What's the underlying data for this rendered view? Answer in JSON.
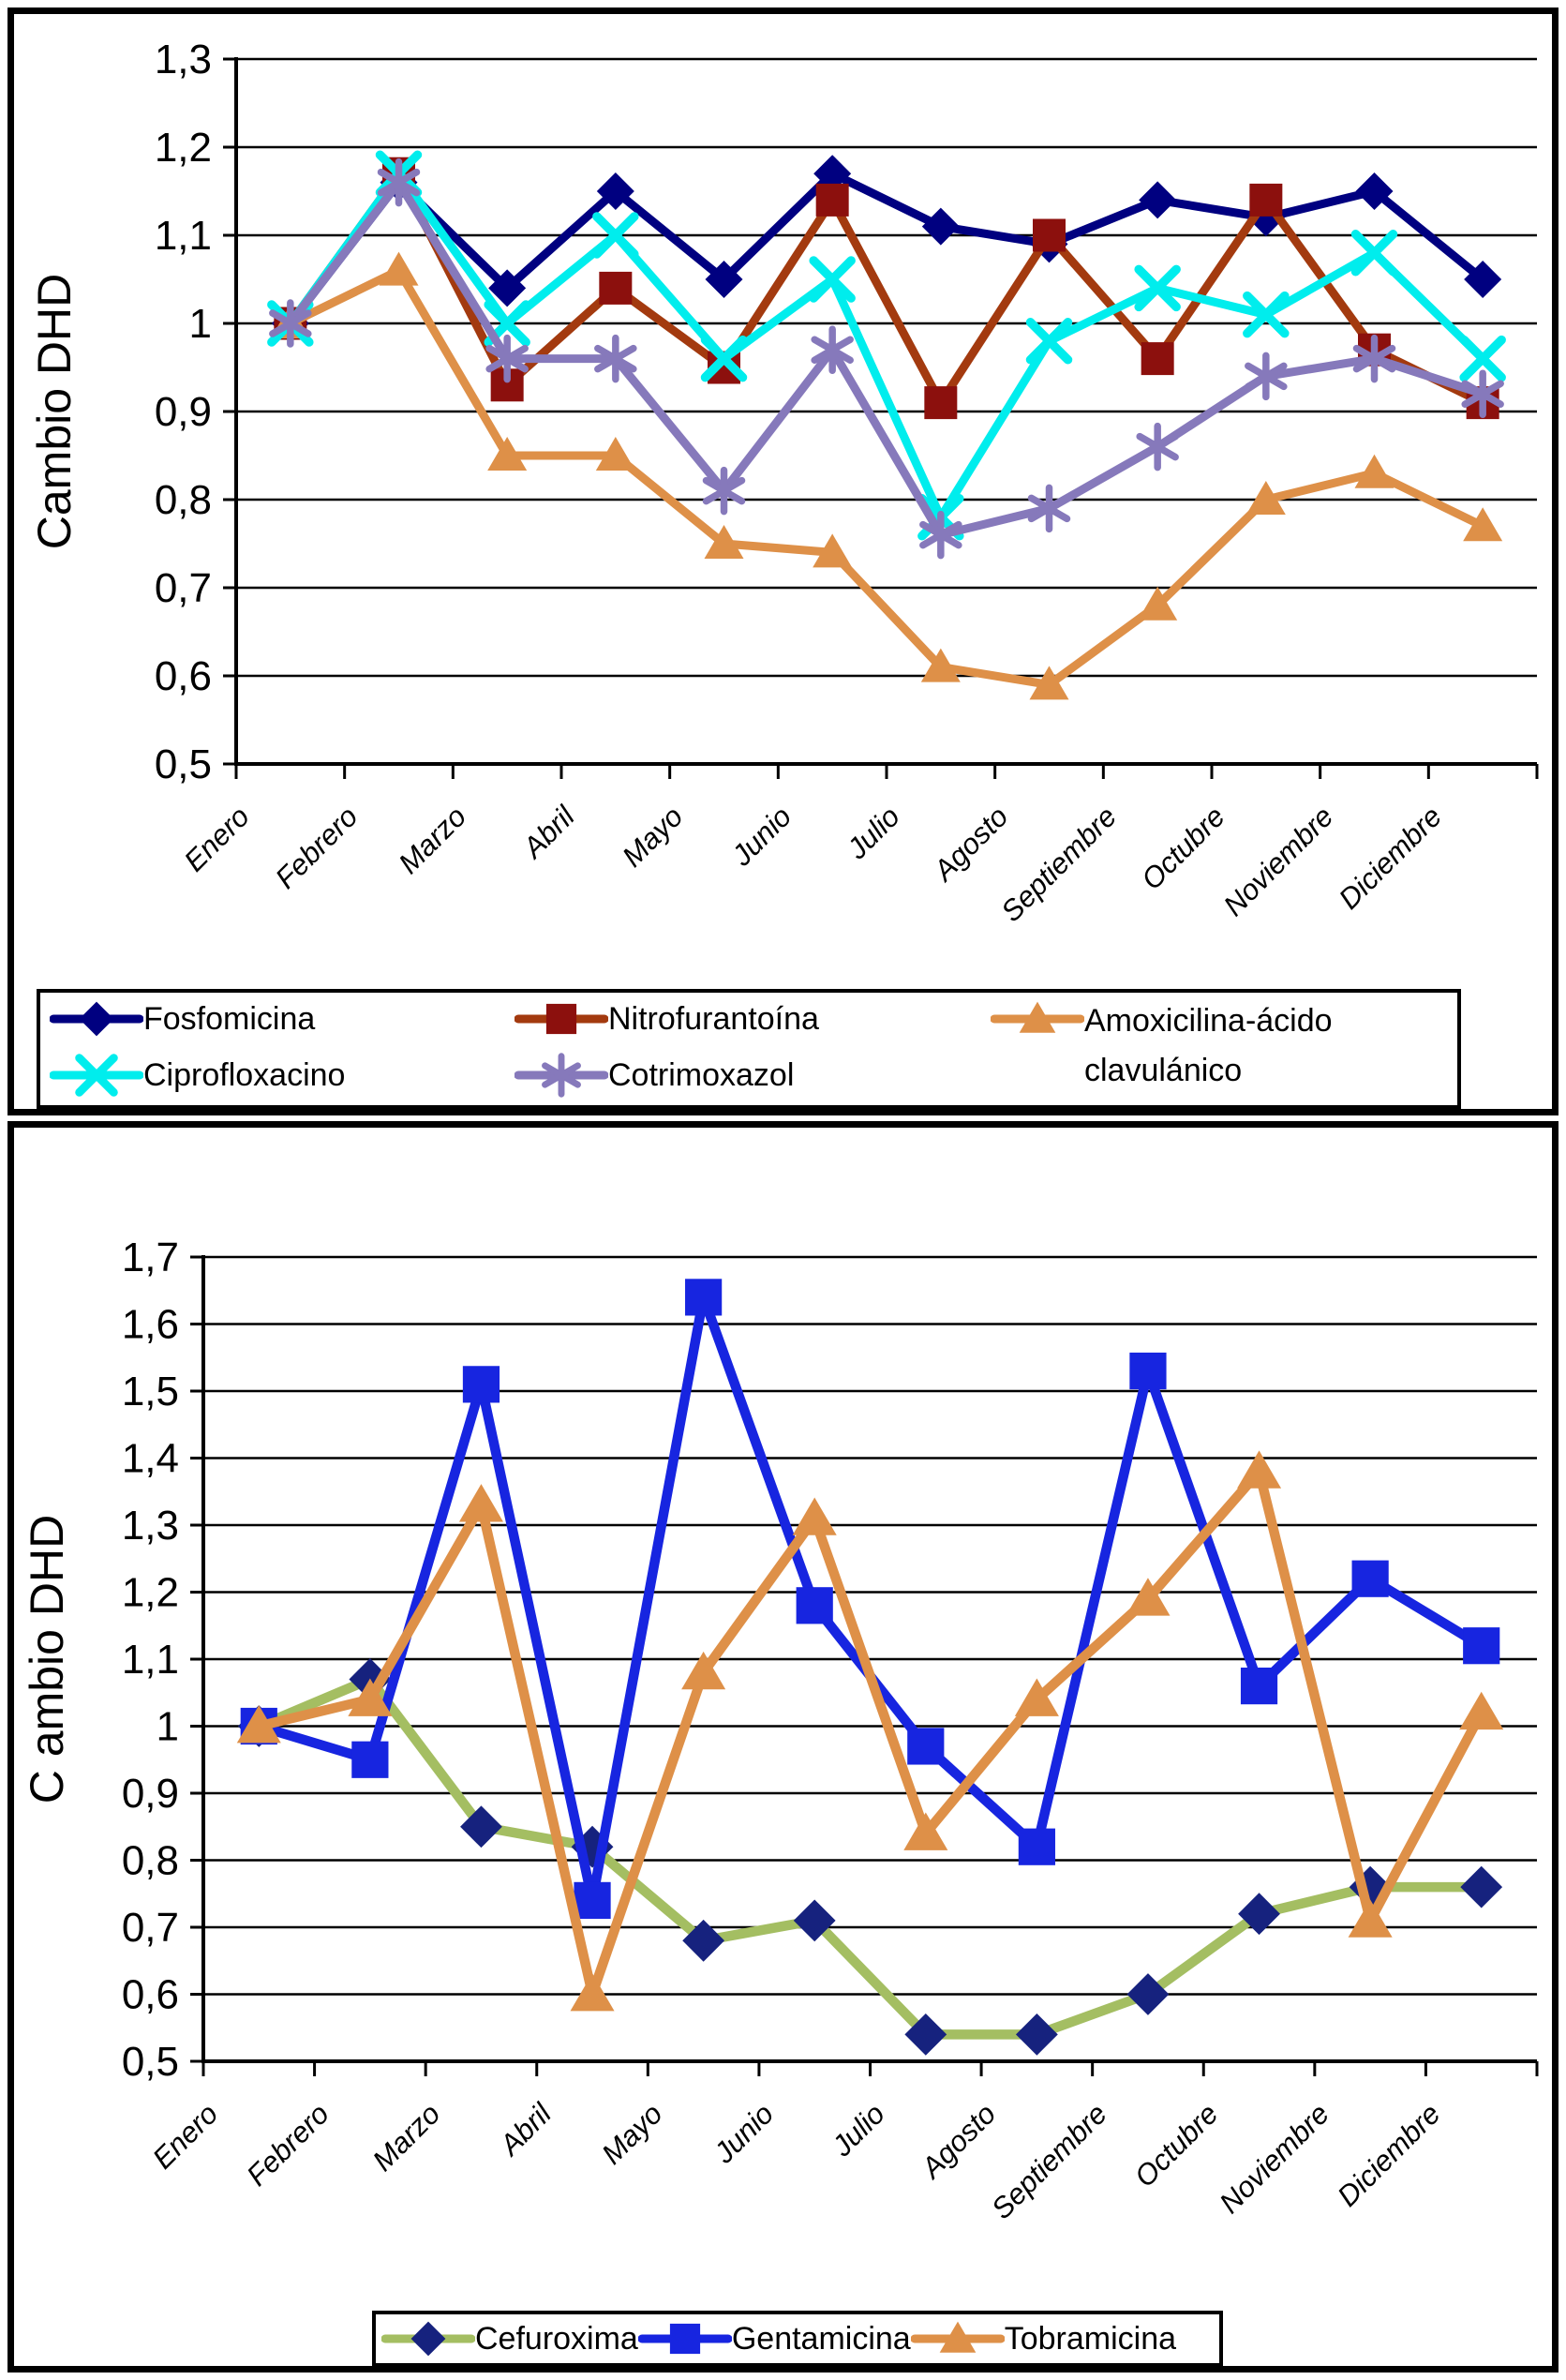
{
  "page": {
    "background_color": "#FFFFFF",
    "border_color": "#000000"
  },
  "chart_data": [
    {
      "type": "line",
      "title": "",
      "xlabel": "",
      "ylabel": "Cambio DHD",
      "categories": [
        "Enero",
        "Febrero",
        "Marzo",
        "Abril",
        "Mayo",
        "Junio",
        "Julio",
        "Agosto",
        "Septiembre",
        "Octubre",
        "Noviembre",
        "Diciembre"
      ],
      "ylim": [
        0.5,
        1.3
      ],
      "ytick_step": 0.1,
      "ytick_labels": [
        "0,5",
        "0,6",
        "0,7",
        "0,8",
        "0,9",
        "1",
        "1,1",
        "1,2",
        "1,3"
      ],
      "decimal_separator": ",",
      "grid": true,
      "xtick_rotation_deg": 45,
      "legend_position": "bottom-box-2-rows",
      "series": [
        {
          "name": "Fosfomicina",
          "marker": "diamond",
          "line_color": "#000080",
          "marker_color": "#000080",
          "values": [
            1.0,
            1.16,
            1.04,
            1.15,
            1.05,
            1.17,
            1.11,
            1.09,
            1.14,
            1.12,
            1.15,
            1.05
          ]
        },
        {
          "name": "Nitrofurantoína",
          "marker": "square",
          "line_color": "#A33A0F",
          "marker_color": "#8C100D",
          "values": [
            1.0,
            1.17,
            0.93,
            1.04,
            0.95,
            1.14,
            0.91,
            1.1,
            0.96,
            1.14,
            0.97,
            0.91
          ]
        },
        {
          "name": "Amoxicilina-ácido clavulánico",
          "marker": "triangle",
          "line_color": "#DE9048",
          "marker_color": "#DE9048",
          "values": [
            1.0,
            1.06,
            0.85,
            0.85,
            0.75,
            0.74,
            0.61,
            0.59,
            0.68,
            0.8,
            0.83,
            0.77
          ]
        },
        {
          "name": "Ciprofloxacino",
          "marker": "x",
          "line_color": "#00EDED",
          "marker_color": "#00EDED",
          "values": [
            1.0,
            1.17,
            1.0,
            1.1,
            0.96,
            1.05,
            0.78,
            0.98,
            1.04,
            1.01,
            1.08,
            0.96
          ]
        },
        {
          "name": "Cotrimoxazol",
          "marker": "star",
          "line_color": "#8679BB",
          "marker_color": "#8679BB",
          "values": [
            1.0,
            1.16,
            0.96,
            0.96,
            0.81,
            0.97,
            0.76,
            0.79,
            0.86,
            0.94,
            0.96,
            0.92
          ]
        }
      ]
    },
    {
      "type": "line",
      "title": "",
      "xlabel": "",
      "ylabel": "C ambio DHD",
      "categories": [
        "Enero",
        "Febrero",
        "Marzo",
        "Abril",
        "Mayo",
        "Junio",
        "Julio",
        "Agosto",
        "Septiembre",
        "Octubre",
        "Noviembre",
        "Diciembre"
      ],
      "ylim": [
        0.5,
        1.7
      ],
      "ytick_step": 0.1,
      "ytick_labels": [
        "0,5",
        "0,6",
        "0,7",
        "0,8",
        "0,9",
        "1",
        "1,1",
        "1,2",
        "1,3",
        "1,4",
        "1,5",
        "1,6",
        "1,7"
      ],
      "decimal_separator": ",",
      "grid": true,
      "xtick_rotation_deg": 45,
      "legend_position": "bottom-box-1-row",
      "series": [
        {
          "name": "Cefuroxima",
          "marker": "diamond",
          "line_color": "#A4BE62",
          "marker_color": "#16227E",
          "values": [
            1.0,
            1.07,
            0.85,
            0.82,
            0.68,
            0.71,
            0.54,
            0.54,
            0.6,
            0.72,
            0.76,
            0.76
          ]
        },
        {
          "name": "Gentamicina",
          "marker": "square",
          "line_color": "#1725E0",
          "marker_color": "#1725E0",
          "values": [
            1.0,
            0.95,
            1.51,
            0.74,
            1.64,
            1.18,
            0.97,
            0.82,
            1.53,
            1.06,
            1.22,
            1.12
          ]
        },
        {
          "name": "Tobramicina",
          "marker": "triangle",
          "line_color": "#DE9048",
          "marker_color": "#DE9048",
          "values": [
            1.0,
            1.04,
            1.33,
            0.6,
            1.08,
            1.31,
            0.84,
            1.04,
            1.19,
            1.38,
            0.71,
            1.02
          ]
        }
      ]
    }
  ]
}
